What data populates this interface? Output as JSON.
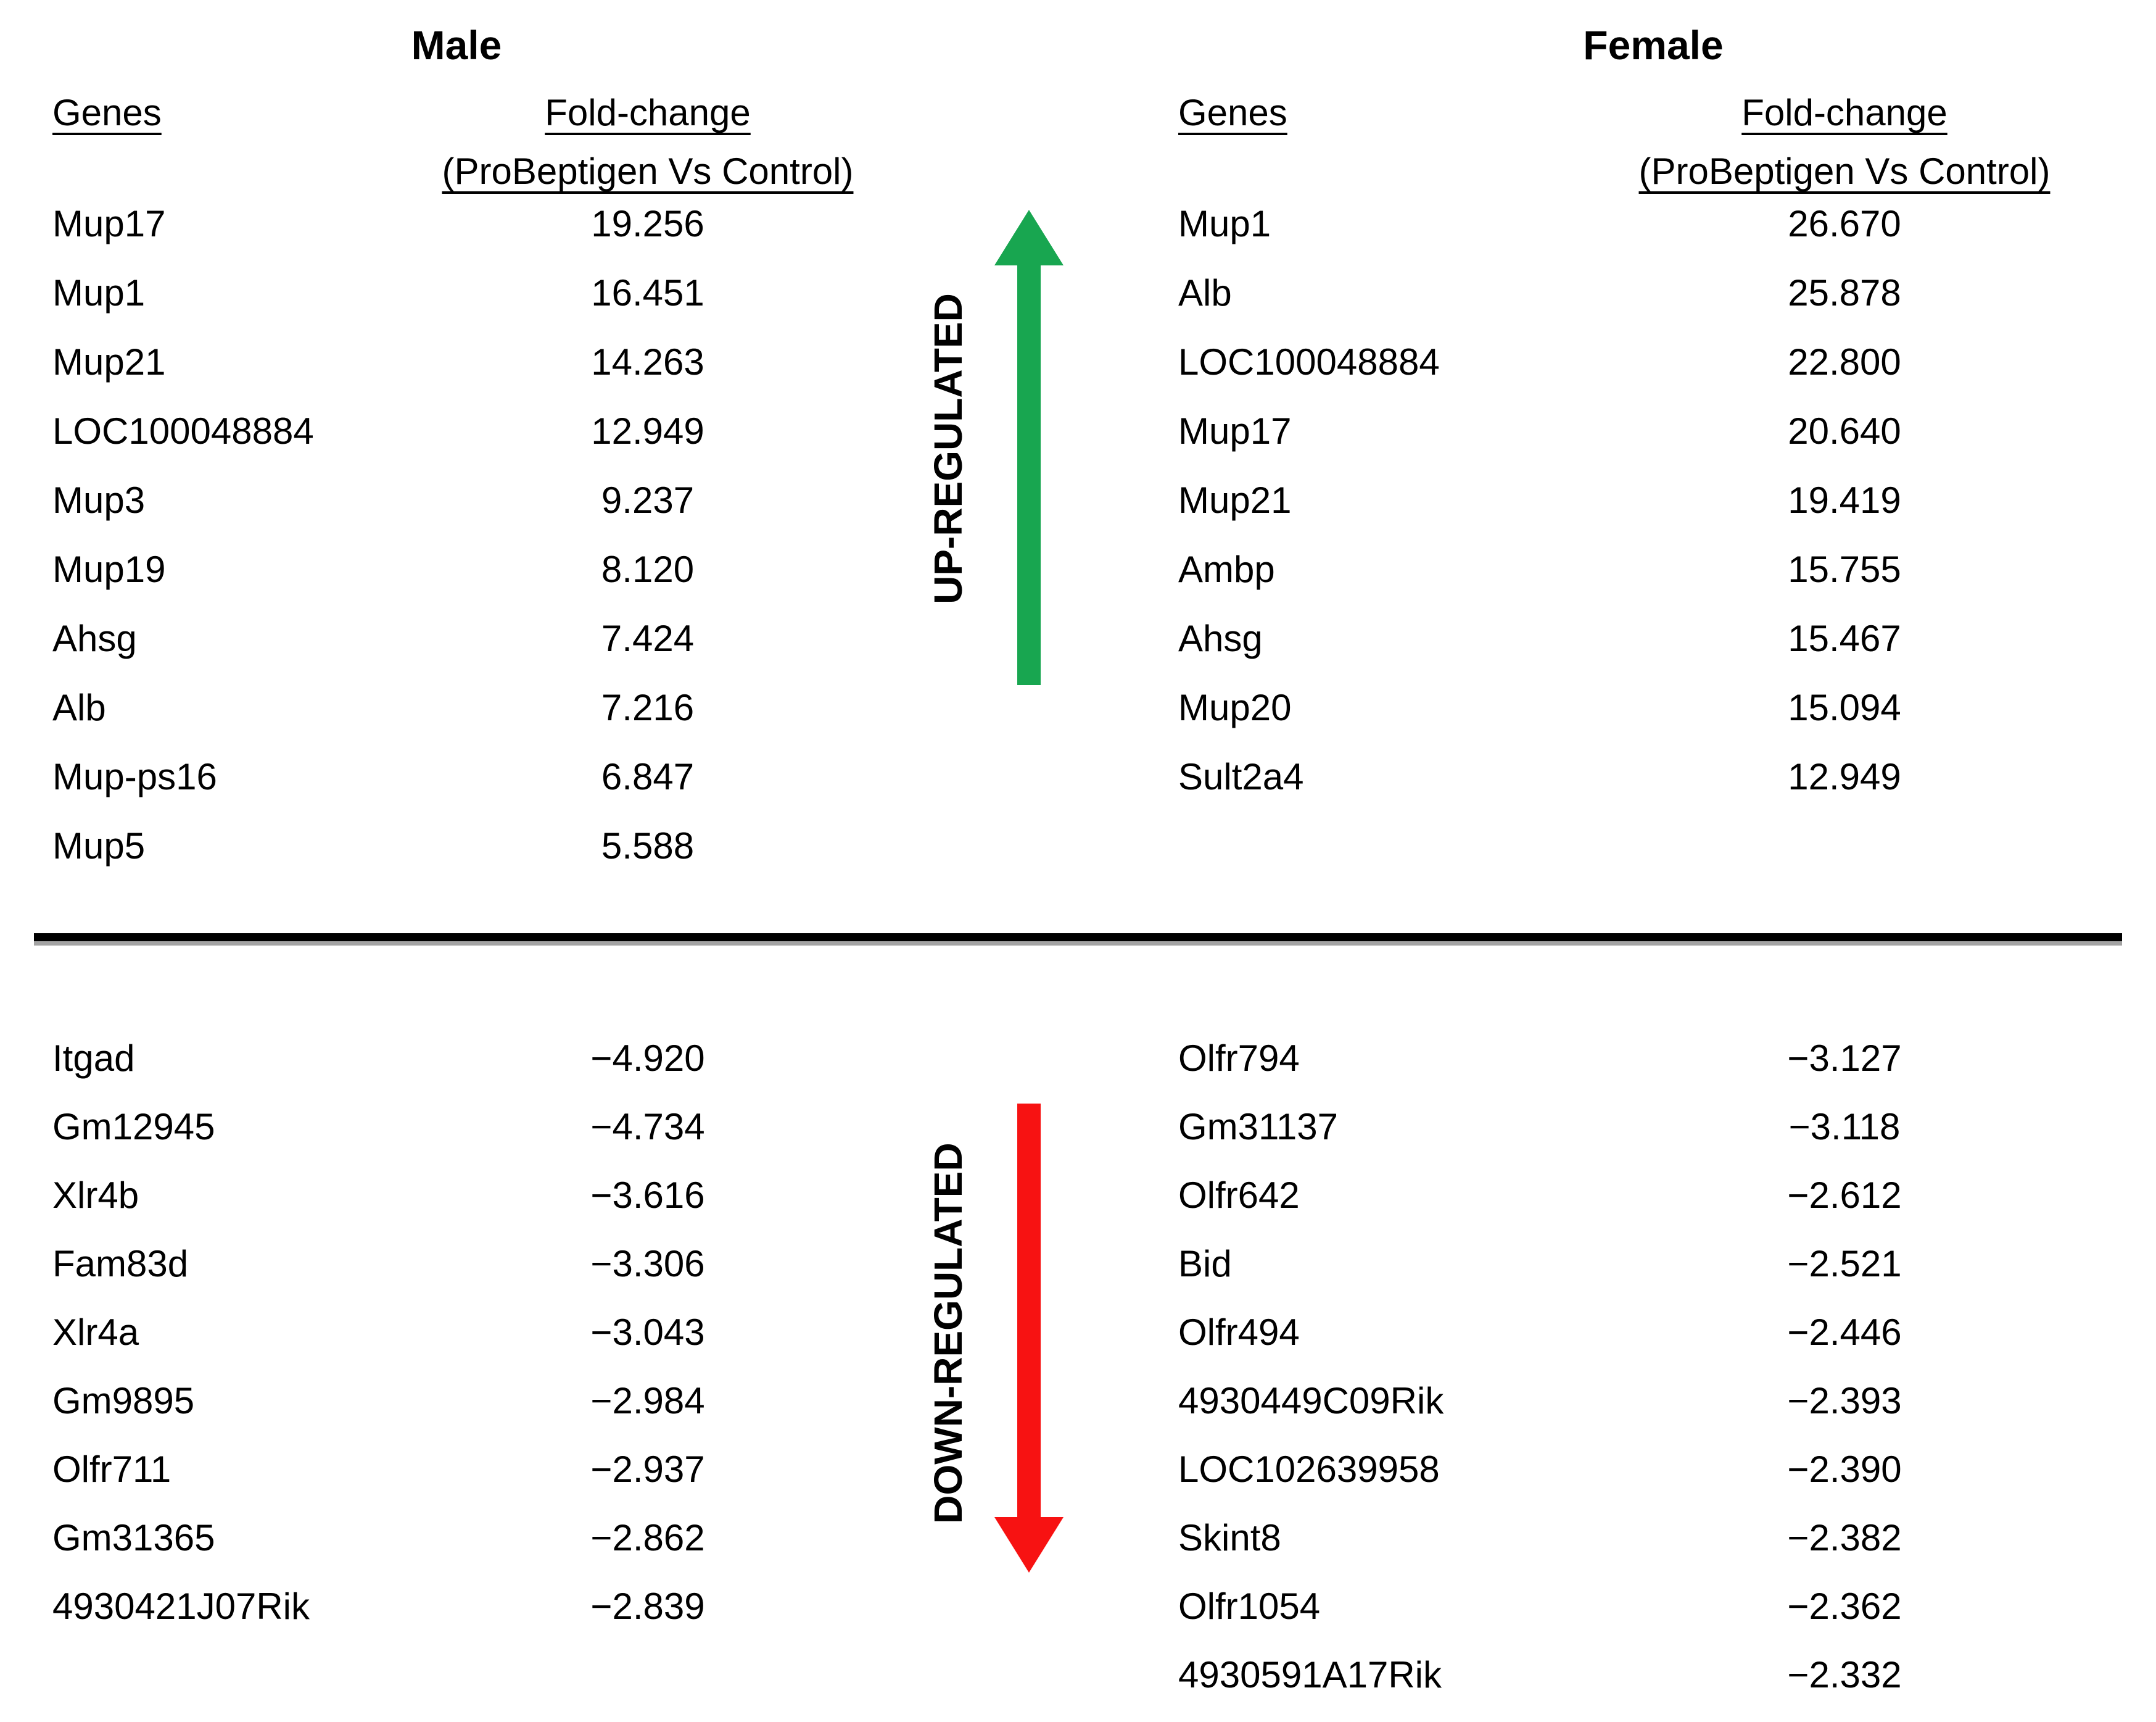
{
  "figure": {
    "male_title": "Male",
    "female_title": "Female",
    "headers": {
      "genes": "Genes",
      "fold_change": "Fold-change",
      "comparison": "(ProBeptigen Vs Control)"
    },
    "up_label": "UP-REGULATED",
    "down_label": "DOWN-REGULATED",
    "colors": {
      "up_arrow": "#18a650",
      "down_arrow": "#f71212",
      "divider": "#000000"
    }
  },
  "tables": {
    "male_up": {
      "rows": [
        {
          "gene": "Mup17",
          "value": "19.256"
        },
        {
          "gene": "Mup1",
          "value": "16.451"
        },
        {
          "gene": "Mup21",
          "value": "14.263"
        },
        {
          "gene": "LOC100048884",
          "value": "12.949"
        },
        {
          "gene": "Mup3",
          "value": "9.237"
        },
        {
          "gene": "Mup19",
          "value": "8.120"
        },
        {
          "gene": "Ahsg",
          "value": "7.424"
        },
        {
          "gene": "Alb",
          "value": "7.216"
        },
        {
          "gene": "Mup-ps16",
          "value": "6.847"
        },
        {
          "gene": "Mup5",
          "value": "5.588"
        }
      ]
    },
    "female_up": {
      "rows": [
        {
          "gene": "Mup1",
          "value": "26.670"
        },
        {
          "gene": "Alb",
          "value": "25.878"
        },
        {
          "gene": "LOC100048884",
          "value": "22.800"
        },
        {
          "gene": "Mup17",
          "value": "20.640"
        },
        {
          "gene": "Mup21",
          "value": "19.419"
        },
        {
          "gene": "Ambp",
          "value": "15.755"
        },
        {
          "gene": "Ahsg",
          "value": "15.467"
        },
        {
          "gene": "Mup20",
          "value": "15.094"
        },
        {
          "gene": "Sult2a4",
          "value": "12.949"
        }
      ]
    },
    "male_down": {
      "rows": [
        {
          "gene": "Itgad",
          "value": "−4.920"
        },
        {
          "gene": "Gm12945",
          "value": "−4.734"
        },
        {
          "gene": "Xlr4b",
          "value": "−3.616"
        },
        {
          "gene": "Fam83d",
          "value": "−3.306"
        },
        {
          "gene": "Xlr4a",
          "value": "−3.043"
        },
        {
          "gene": "Gm9895",
          "value": "−2.984"
        },
        {
          "gene": "Olfr711",
          "value": "−2.937"
        },
        {
          "gene": "Gm31365",
          "value": "−2.862"
        },
        {
          "gene": "4930421J07Rik",
          "value": "−2.839"
        }
      ]
    },
    "female_down": {
      "rows": [
        {
          "gene": "Olfr794",
          "value": "−3.127"
        },
        {
          "gene": "Gm31137",
          "value": "−3.118"
        },
        {
          "gene": "Olfr642",
          "value": "−2.612"
        },
        {
          "gene": "Bid",
          "value": "−2.521"
        },
        {
          "gene": "Olfr494",
          "value": "−2.446"
        },
        {
          "gene": "4930449C09Rik",
          "value": "−2.393"
        },
        {
          "gene": "LOC102639958",
          "value": "−2.390"
        },
        {
          "gene": "Skint8",
          "value": "−2.382"
        },
        {
          "gene": "Olfr1054",
          "value": "−2.362"
        },
        {
          "gene": "4930591A17Rik",
          "value": "−2.332"
        }
      ]
    }
  },
  "chart_data": [
    {
      "type": "table",
      "title": "Male up-regulated",
      "columns": [
        "Genes",
        "Fold-change (ProBeptigen Vs Control)"
      ],
      "rows": [
        [
          "Mup17",
          19.256
        ],
        [
          "Mup1",
          16.451
        ],
        [
          "Mup21",
          14.263
        ],
        [
          "LOC100048884",
          12.949
        ],
        [
          "Mup3",
          9.237
        ],
        [
          "Mup19",
          8.12
        ],
        [
          "Ahsg",
          7.424
        ],
        [
          "Alb",
          7.216
        ],
        [
          "Mup-ps16",
          6.847
        ],
        [
          "Mup5",
          5.588
        ]
      ]
    },
    {
      "type": "table",
      "title": "Female up-regulated",
      "columns": [
        "Genes",
        "Fold-change (ProBeptigen Vs Control)"
      ],
      "rows": [
        [
          "Mup1",
          26.67
        ],
        [
          "Alb",
          25.878
        ],
        [
          "LOC100048884",
          22.8
        ],
        [
          "Mup17",
          20.64
        ],
        [
          "Mup21",
          19.419
        ],
        [
          "Ambp",
          15.755
        ],
        [
          "Ahsg",
          15.467
        ],
        [
          "Mup20",
          15.094
        ],
        [
          "Sult2a4",
          12.949
        ]
      ]
    },
    {
      "type": "table",
      "title": "Male down-regulated",
      "columns": [
        "Genes",
        "Fold-change (ProBeptigen Vs Control)"
      ],
      "rows": [
        [
          "Itgad",
          -4.92
        ],
        [
          "Gm12945",
          -4.734
        ],
        [
          "Xlr4b",
          -3.616
        ],
        [
          "Fam83d",
          -3.306
        ],
        [
          "Xlr4a",
          -3.043
        ],
        [
          "Gm9895",
          -2.984
        ],
        [
          "Olfr711",
          -2.937
        ],
        [
          "Gm31365",
          -2.862
        ],
        [
          "4930421J07Rik",
          -2.839
        ]
      ]
    },
    {
      "type": "table",
      "title": "Female down-regulated",
      "columns": [
        "Genes",
        "Fold-change (ProBeptigen Vs Control)"
      ],
      "rows": [
        [
          "Olfr794",
          -3.127
        ],
        [
          "Gm31137",
          -3.118
        ],
        [
          "Olfr642",
          -2.612
        ],
        [
          "Bid",
          -2.521
        ],
        [
          "Olfr494",
          -2.446
        ],
        [
          "4930449C09Rik",
          -2.393
        ],
        [
          "LOC102639958",
          -2.39
        ],
        [
          "Skint8",
          -2.382
        ],
        [
          "Olfr1054",
          -2.362
        ],
        [
          "4930591A17Rik",
          -2.332
        ]
      ]
    }
  ]
}
